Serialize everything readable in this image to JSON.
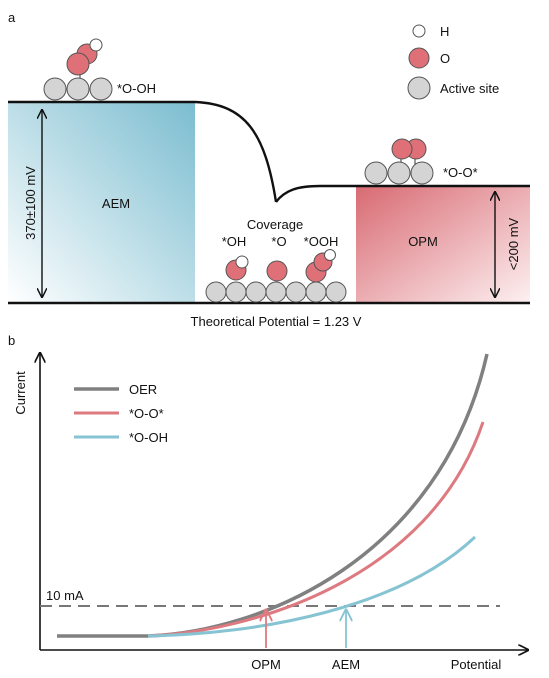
{
  "panel_a": {
    "label": "a",
    "left_state": "*O-OH",
    "right_state": "*O-O*",
    "left_region": "AEM",
    "right_region": "OPM",
    "left_energy": "370±100 mV",
    "right_energy": "<200 mV",
    "coverage_title": "Coverage",
    "coverage_items": [
      "*OH",
      "*O",
      "*OOH"
    ],
    "bottom_caption": "Theoretical Potential = 1.23 V",
    "legend": [
      {
        "label": "H",
        "color": "#ffffff"
      },
      {
        "label": "O",
        "color": "#e07078"
      },
      {
        "label": "Active site",
        "color": "#d4d4d4"
      }
    ]
  },
  "panel_b": {
    "label": "b",
    "ylabel": "Current",
    "xlabel": "Potential",
    "threshold_label": "10 mA",
    "x_markers": [
      "OPM",
      "AEM"
    ],
    "legend": [
      {
        "label": "OER",
        "color": "#808080"
      },
      {
        "label": "*O-O*",
        "color": "#dd7a80"
      },
      {
        "label": "*O-OH",
        "color": "#86c3d3"
      }
    ]
  }
}
